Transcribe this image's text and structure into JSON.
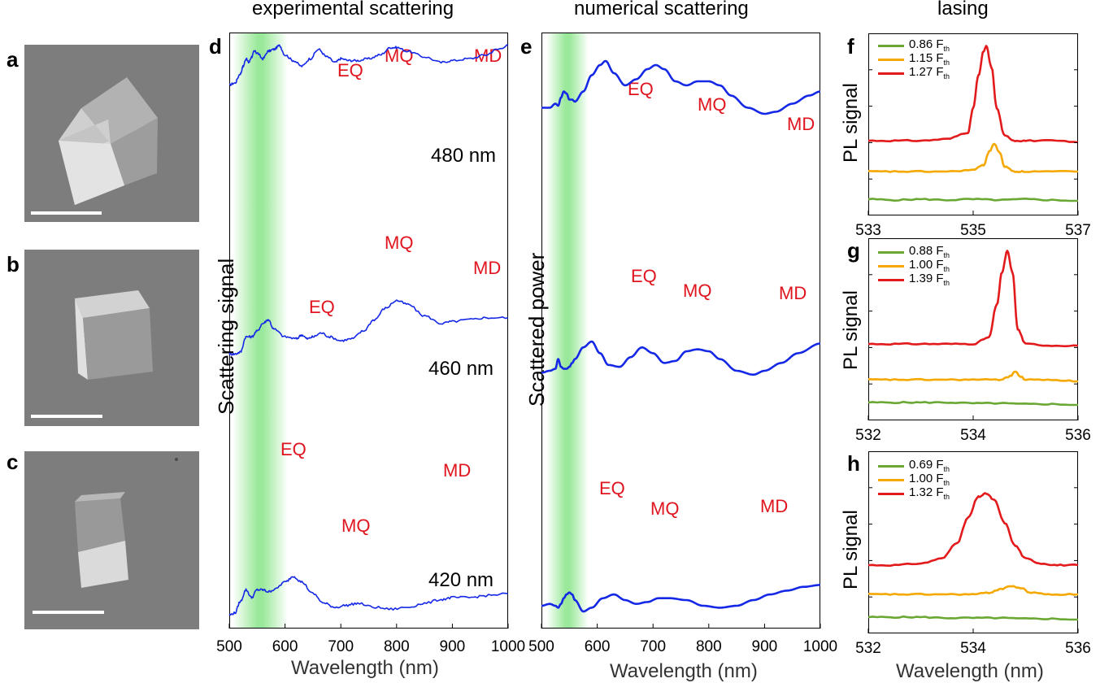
{
  "figure": {
    "column_titles": {
      "experimental": "experimental scattering",
      "numerical": "numerical scattering",
      "lasing": "lasing"
    },
    "panel_letters": {
      "a": "a",
      "b": "b",
      "c": "c",
      "d": "d",
      "e": "e",
      "f": "f",
      "g": "g",
      "h": "h"
    },
    "y_labels": {
      "experimental": "Scattering signal",
      "numerical": "Scattered power",
      "lasing": "PL signal"
    },
    "x_title": "Wavelength (nm)",
    "size_labels": [
      "480 nm",
      "460 nm",
      "420 nm"
    ],
    "modes": {
      "eq": "EQ",
      "mq": "MQ",
      "md": "MD"
    },
    "colors": {
      "scatter": "#1428e6",
      "mode_text": "#e0141e",
      "green": "#6aa834",
      "orange": "#f5a800",
      "red": "#e31a1c",
      "band": "#7fe07f"
    }
  },
  "chart_data": [
    {
      "type": "line",
      "panel": "d",
      "title": "experimental scattering",
      "xlabel": "Wavelength (nm)",
      "ylabel": "Scattering signal",
      "xlim": [
        500,
        1000
      ],
      "x_ticks": [
        "500",
        "600",
        "700",
        "800",
        "900",
        "1000"
      ],
      "highlight_band_nm": [
        505,
        570
      ],
      "series": [
        {
          "name": "480 nm",
          "x": [
            500,
            510,
            520,
            525,
            530,
            535,
            540,
            545,
            550,
            560,
            570,
            580,
            590,
            600,
            615,
            630,
            645,
            660,
            675,
            690,
            700,
            715,
            730,
            750,
            770,
            790,
            800,
            820,
            850,
            880,
            900,
            930,
            960,
            980,
            1000
          ],
          "values": [
            0.72,
            0.73,
            0.78,
            0.82,
            0.86,
            0.84,
            0.87,
            0.9,
            0.89,
            0.86,
            0.9,
            0.91,
            0.93,
            0.88,
            0.85,
            0.82,
            0.86,
            0.91,
            0.87,
            0.84,
            0.86,
            0.85,
            0.85,
            0.86,
            0.88,
            0.92,
            0.92,
            0.9,
            0.87,
            0.84,
            0.85,
            0.86,
            0.88,
            0.91,
            0.93
          ]
        },
        {
          "name": "460 nm",
          "x": [
            500,
            510,
            520,
            530,
            540,
            550,
            560,
            570,
            580,
            600,
            620,
            630,
            640,
            650,
            665,
            680,
            700,
            720,
            740,
            760,
            780,
            800,
            820,
            850,
            880,
            900,
            930,
            960,
            1000
          ],
          "values": [
            0.36,
            0.36,
            0.37,
            0.45,
            0.45,
            0.48,
            0.52,
            0.54,
            0.49,
            0.45,
            0.44,
            0.46,
            0.44,
            0.45,
            0.47,
            0.45,
            0.43,
            0.44,
            0.48,
            0.54,
            0.6,
            0.64,
            0.62,
            0.56,
            0.52,
            0.53,
            0.54,
            0.55,
            0.55
          ]
        },
        {
          "name": "420 nm",
          "x": [
            500,
            510,
            520,
            530,
            540,
            550,
            560,
            570,
            580,
            600,
            615,
            630,
            650,
            670,
            690,
            710,
            730,
            760,
            790,
            820,
            850,
            880,
            900,
            930,
            960,
            1000
          ],
          "values": [
            0.07,
            0.08,
            0.14,
            0.2,
            0.16,
            0.2,
            0.2,
            0.19,
            0.2,
            0.24,
            0.27,
            0.24,
            0.18,
            0.13,
            0.11,
            0.12,
            0.13,
            0.11,
            0.1,
            0.11,
            0.13,
            0.15,
            0.16,
            0.16,
            0.17,
            0.18
          ]
        }
      ]
    },
    {
      "type": "line",
      "panel": "e",
      "title": "numerical scattering",
      "xlabel": "Wavelength (nm)",
      "ylabel": "Scattered power",
      "xlim": [
        500,
        1000
      ],
      "x_ticks": [
        "500",
        "600",
        "700",
        "800",
        "900",
        "1000"
      ],
      "highlight_band_nm": [
        505,
        565
      ],
      "series": [
        {
          "name": "480 nm",
          "x": [
            500,
            515,
            525,
            530,
            535,
            540,
            545,
            550,
            555,
            560,
            575,
            590,
            605,
            615,
            630,
            650,
            670,
            690,
            705,
            720,
            740,
            760,
            780,
            800,
            820,
            840,
            870,
            900,
            920,
            950,
            980,
            1000
          ],
          "values": [
            0.67,
            0.67,
            0.69,
            0.68,
            0.72,
            0.75,
            0.74,
            0.71,
            0.71,
            0.7,
            0.75,
            0.83,
            0.88,
            0.9,
            0.84,
            0.78,
            0.81,
            0.86,
            0.88,
            0.86,
            0.8,
            0.78,
            0.8,
            0.8,
            0.78,
            0.73,
            0.67,
            0.64,
            0.65,
            0.69,
            0.73,
            0.75
          ]
        },
        {
          "name": "460 nm",
          "x": [
            500,
            515,
            525,
            530,
            535,
            540,
            545,
            550,
            555,
            560,
            575,
            590,
            605,
            620,
            640,
            660,
            680,
            700,
            720,
            740,
            760,
            780,
            800,
            820,
            850,
            880,
            900,
            930,
            960,
            1000
          ],
          "values": [
            0.34,
            0.35,
            0.36,
            0.41,
            0.37,
            0.36,
            0.36,
            0.37,
            0.39,
            0.41,
            0.47,
            0.5,
            0.44,
            0.38,
            0.37,
            0.42,
            0.47,
            0.44,
            0.39,
            0.4,
            0.45,
            0.46,
            0.45,
            0.41,
            0.35,
            0.33,
            0.35,
            0.39,
            0.44,
            0.49
          ]
        },
        {
          "name": "420 nm",
          "x": [
            500,
            515,
            525,
            530,
            535,
            540,
            545,
            550,
            555,
            560,
            575,
            590,
            610,
            630,
            650,
            670,
            690,
            710,
            730,
            760,
            790,
            820,
            850,
            880,
            910,
            940,
            970,
            1000
          ],
          "values": [
            0.12,
            0.13,
            0.12,
            0.11,
            0.13,
            0.16,
            0.18,
            0.19,
            0.18,
            0.15,
            0.09,
            0.11,
            0.16,
            0.18,
            0.15,
            0.13,
            0.14,
            0.16,
            0.16,
            0.15,
            0.12,
            0.11,
            0.12,
            0.15,
            0.18,
            0.2,
            0.22,
            0.23
          ]
        }
      ]
    },
    {
      "type": "line",
      "panel": "f",
      "xlabel": "",
      "ylabel": "PL signal",
      "xlim": [
        533,
        537
      ],
      "x_ticks": [
        "533",
        "535",
        "537"
      ],
      "series": [
        {
          "name": "0.86 F",
          "color": "#6aa834",
          "x": [
            533,
            533.5,
            534,
            534.5,
            535,
            535.5,
            536,
            536.5,
            537
          ],
          "values": [
            0.04,
            0.035,
            0.04,
            0.035,
            0.04,
            0.035,
            0.04,
            0.035,
            0.03
          ]
        },
        {
          "name": "1.15 F",
          "color": "#f5a800",
          "x": [
            533,
            533.5,
            534,
            534.5,
            535,
            535.2,
            535.3,
            535.4,
            535.5,
            535.6,
            535.8,
            536,
            536.5,
            537
          ],
          "values": [
            0.21,
            0.21,
            0.21,
            0.21,
            0.22,
            0.25,
            0.33,
            0.38,
            0.33,
            0.24,
            0.21,
            0.21,
            0.21,
            0.21
          ]
        },
        {
          "name": "1.27 F",
          "color": "#e31a1c",
          "x": [
            533,
            533.5,
            534,
            534.5,
            534.9,
            535.0,
            535.1,
            535.2,
            535.25,
            535.35,
            535.45,
            535.6,
            535.8,
            536,
            536.5,
            537
          ],
          "values": [
            0.4,
            0.4,
            0.4,
            0.41,
            0.45,
            0.6,
            0.8,
            0.95,
            0.98,
            0.85,
            0.6,
            0.43,
            0.4,
            0.4,
            0.4,
            0.39
          ]
        }
      ]
    },
    {
      "type": "line",
      "panel": "g",
      "xlabel": "",
      "ylabel": "PL signal",
      "xlim": [
        532,
        536
      ],
      "x_ticks": [
        "532",
        "534",
        "536"
      ],
      "series": [
        {
          "name": "0.88 F",
          "color": "#6aa834",
          "x": [
            532,
            532.5,
            533,
            533.5,
            534,
            534.5,
            535,
            535.5,
            536
          ],
          "values": [
            0.05,
            0.05,
            0.05,
            0.05,
            0.045,
            0.045,
            0.04,
            0.04,
            0.035
          ]
        },
        {
          "name": "1.00 F",
          "color": "#f5a800",
          "x": [
            532,
            532.5,
            533,
            533.5,
            534,
            534.5,
            534.7,
            534.8,
            534.9,
            535,
            535.5,
            536
          ],
          "values": [
            0.19,
            0.19,
            0.19,
            0.19,
            0.19,
            0.19,
            0.21,
            0.24,
            0.21,
            0.19,
            0.19,
            0.18
          ]
        },
        {
          "name": "1.39 F",
          "color": "#e31a1c",
          "x": [
            532,
            532.5,
            533,
            533.5,
            534,
            534.3,
            534.45,
            534.55,
            534.65,
            534.75,
            534.85,
            535,
            535.5,
            536
          ],
          "values": [
            0.41,
            0.41,
            0.41,
            0.41,
            0.41,
            0.45,
            0.65,
            0.85,
            0.98,
            0.85,
            0.5,
            0.41,
            0.4,
            0.4
          ]
        }
      ]
    },
    {
      "type": "line",
      "panel": "h",
      "xlabel": "Wavelength (nm)",
      "ylabel": "PL signal",
      "xlim": [
        532,
        536
      ],
      "x_ticks": [
        "532",
        "534",
        "536"
      ],
      "series": [
        {
          "name": "0.69 F",
          "color": "#6aa834",
          "x": [
            532,
            532.5,
            533,
            533.5,
            534,
            534.5,
            535,
            535.5,
            536
          ],
          "values": [
            0.04,
            0.04,
            0.04,
            0.035,
            0.035,
            0.035,
            0.03,
            0.03,
            0.025
          ]
        },
        {
          "name": "1.00 F",
          "color": "#f5a800",
          "x": [
            532,
            532.5,
            533,
            533.5,
            534,
            534.3,
            534.5,
            534.7,
            534.9,
            535.1,
            535.5,
            536
          ],
          "values": [
            0.18,
            0.18,
            0.18,
            0.18,
            0.18,
            0.19,
            0.21,
            0.23,
            0.22,
            0.19,
            0.18,
            0.18
          ]
        },
        {
          "name": "1.32 F",
          "color": "#e31a1c",
          "x": [
            532,
            532.5,
            533,
            533.4,
            533.7,
            533.9,
            534.1,
            534.25,
            534.4,
            534.6,
            534.8,
            535.0,
            535.3,
            535.6,
            536
          ],
          "values": [
            0.36,
            0.36,
            0.37,
            0.4,
            0.5,
            0.65,
            0.78,
            0.8,
            0.76,
            0.62,
            0.48,
            0.4,
            0.37,
            0.36,
            0.36
          ]
        }
      ]
    }
  ]
}
